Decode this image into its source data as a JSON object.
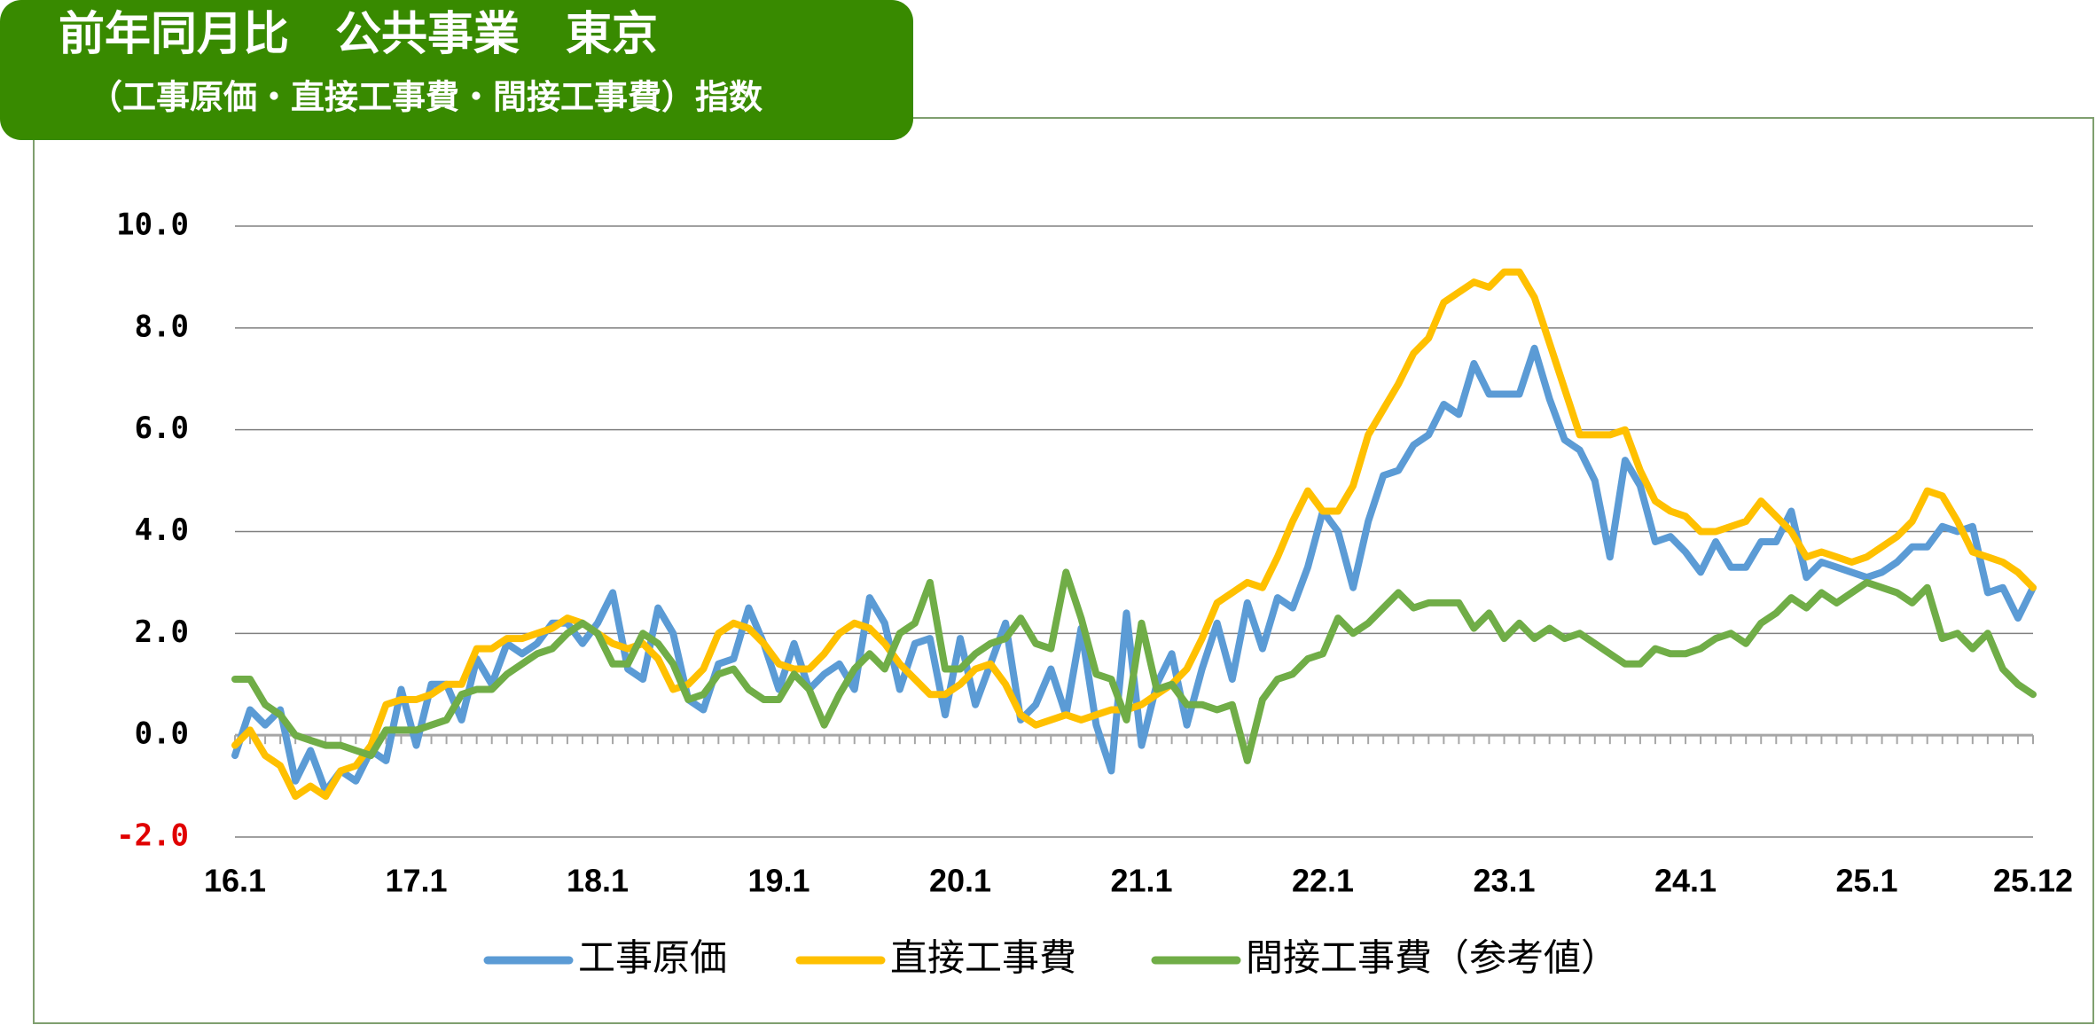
{
  "header": {
    "title": "前年同月比　公共事業　東京",
    "subtitle": "（工事原価・直接工事費・間接工事費）指数"
  },
  "chart_data": {
    "type": "line",
    "categories": [
      "16.1",
      null,
      null,
      null,
      null,
      null,
      null,
      null,
      null,
      null,
      null,
      null,
      "17.1",
      null,
      null,
      null,
      null,
      null,
      null,
      null,
      null,
      null,
      null,
      null,
      "18.1",
      null,
      null,
      null,
      null,
      null,
      null,
      null,
      null,
      null,
      null,
      null,
      "19.1",
      null,
      null,
      null,
      null,
      null,
      null,
      null,
      null,
      null,
      null,
      null,
      "20.1",
      null,
      null,
      null,
      null,
      null,
      null,
      null,
      null,
      null,
      null,
      null,
      "21.1",
      null,
      null,
      null,
      null,
      null,
      null,
      null,
      null,
      null,
      null,
      null,
      "22.1",
      null,
      null,
      null,
      null,
      null,
      null,
      null,
      null,
      null,
      null,
      null,
      "23.1",
      null,
      null,
      null,
      null,
      null,
      null,
      null,
      null,
      null,
      null,
      null,
      "24.1",
      null,
      null,
      null,
      null,
      null,
      null,
      null,
      null,
      null,
      null,
      null,
      "25.1",
      null,
      null,
      null,
      null,
      null,
      null,
      null,
      null,
      null,
      null,
      "25.12"
    ],
    "series": [
      {
        "name": "工事原価",
        "color": "#5b9bd5",
        "values": [
          -0.4,
          0.5,
          0.2,
          0.5,
          -0.9,
          -0.3,
          -1.1,
          -0.7,
          -0.9,
          -0.3,
          -0.5,
          0.9,
          -0.2,
          1.0,
          1.0,
          0.3,
          1.5,
          1.0,
          1.8,
          1.6,
          1.8,
          2.2,
          2.2,
          1.8,
          2.2,
          2.8,
          1.3,
          1.1,
          2.5,
          2.0,
          0.7,
          0.5,
          1.4,
          1.5,
          2.5,
          1.8,
          0.9,
          1.8,
          0.9,
          1.2,
          1.4,
          0.9,
          2.7,
          2.2,
          0.9,
          1.8,
          1.9,
          0.4,
          1.9,
          0.6,
          1.4,
          2.2,
          0.3,
          0.6,
          1.3,
          0.4,
          2.1,
          0.2,
          -0.7,
          2.4,
          -0.2,
          1.0,
          1.6,
          0.2,
          1.3,
          2.2,
          1.1,
          2.6,
          1.7,
          2.7,
          2.5,
          3.3,
          4.4,
          4.0,
          2.9,
          4.2,
          5.1,
          5.2,
          5.7,
          5.9,
          6.5,
          6.3,
          7.3,
          6.7,
          6.7,
          6.7,
          7.6,
          6.6,
          5.8,
          5.6,
          5.0,
          3.5,
          5.4,
          4.9,
          3.8,
          3.9,
          3.6,
          3.2,
          3.8,
          3.3,
          3.3,
          3.8,
          3.8,
          4.4,
          3.1,
          3.4,
          3.3,
          3.2,
          3.1,
          3.2,
          3.4,
          3.7,
          3.7,
          4.1,
          4.0,
          4.1,
          2.8,
          2.9,
          2.3,
          2.9
        ]
      },
      {
        "name": "直接工事費",
        "color": "#ffc000",
        "values": [
          -0.2,
          0.1,
          -0.4,
          -0.6,
          -1.2,
          -1.0,
          -1.2,
          -0.7,
          -0.6,
          -0.2,
          0.6,
          0.7,
          0.7,
          0.8,
          1.0,
          1.0,
          1.7,
          1.7,
          1.9,
          1.9,
          2.0,
          2.1,
          2.3,
          2.2,
          2.0,
          1.8,
          1.7,
          1.8,
          1.5,
          0.9,
          1.0,
          1.3,
          2.0,
          2.2,
          2.1,
          1.8,
          1.4,
          1.3,
          1.3,
          1.6,
          2.0,
          2.2,
          2.1,
          1.8,
          1.4,
          1.1,
          0.8,
          0.8,
          1.0,
          1.3,
          1.4,
          1.0,
          0.4,
          0.2,
          0.3,
          0.4,
          0.3,
          0.4,
          0.5,
          0.5,
          0.6,
          0.8,
          1.0,
          1.3,
          1.9,
          2.6,
          2.8,
          3.0,
          2.9,
          3.5,
          4.2,
          4.8,
          4.4,
          4.4,
          4.9,
          5.9,
          6.4,
          6.9,
          7.5,
          7.8,
          8.5,
          8.7,
          8.9,
          8.8,
          9.1,
          9.1,
          8.6,
          7.7,
          6.8,
          5.9,
          5.9,
          5.9,
          6.0,
          5.2,
          4.6,
          4.4,
          4.3,
          4.0,
          4.0,
          4.1,
          4.2,
          4.6,
          4.3,
          4.0,
          3.5,
          3.6,
          3.5,
          3.4,
          3.5,
          3.7,
          3.9,
          4.2,
          4.8,
          4.7,
          4.2,
          3.6,
          3.5,
          3.4,
          3.2,
          2.9
        ]
      },
      {
        "name": "間接工事費（参考値）",
        "color": "#70ad47",
        "values": [
          1.1,
          1.1,
          0.6,
          0.4,
          0.0,
          -0.1,
          -0.2,
          -0.2,
          -0.3,
          -0.4,
          0.1,
          0.1,
          0.1,
          0.2,
          0.3,
          0.8,
          0.9,
          0.9,
          1.2,
          1.4,
          1.6,
          1.7,
          2.0,
          2.2,
          2.0,
          1.4,
          1.4,
          2.0,
          1.8,
          1.4,
          0.7,
          0.8,
          1.2,
          1.3,
          0.9,
          0.7,
          0.7,
          1.2,
          0.9,
          0.2,
          0.8,
          1.3,
          1.6,
          1.3,
          2.0,
          2.2,
          3.0,
          1.3,
          1.3,
          1.6,
          1.8,
          1.9,
          2.3,
          1.8,
          1.7,
          3.2,
          2.3,
          1.2,
          1.1,
          0.3,
          2.2,
          0.9,
          1.0,
          0.6,
          0.6,
          0.5,
          0.6,
          -0.5,
          0.7,
          1.1,
          1.2,
          1.5,
          1.6,
          2.3,
          2.0,
          2.2,
          2.5,
          2.8,
          2.5,
          2.6,
          2.6,
          2.6,
          2.1,
          2.4,
          1.9,
          2.2,
          1.9,
          2.1,
          1.9,
          2.0,
          1.8,
          1.6,
          1.4,
          1.4,
          1.7,
          1.6,
          1.6,
          1.7,
          1.9,
          2.0,
          1.8,
          2.2,
          2.4,
          2.7,
          2.5,
          2.8,
          2.6,
          2.8,
          3.0,
          2.9,
          2.8,
          2.6,
          2.9,
          1.9,
          2.0,
          1.7,
          2.0,
          1.3,
          1.0,
          0.8
        ]
      }
    ],
    "ylim": [
      -2,
      10
    ],
    "yticks": [
      {
        "value": 10,
        "label": "10.0"
      },
      {
        "value": 8,
        "label": "8.0"
      },
      {
        "value": 6,
        "label": "6.0"
      },
      {
        "value": 4,
        "label": "4.0"
      },
      {
        "value": 2,
        "label": "2.0"
      },
      {
        "value": 0,
        "label": "0.0"
      },
      {
        "value": -2,
        "label": "-2.0"
      }
    ],
    "grid": true,
    "legend": "bottom"
  }
}
